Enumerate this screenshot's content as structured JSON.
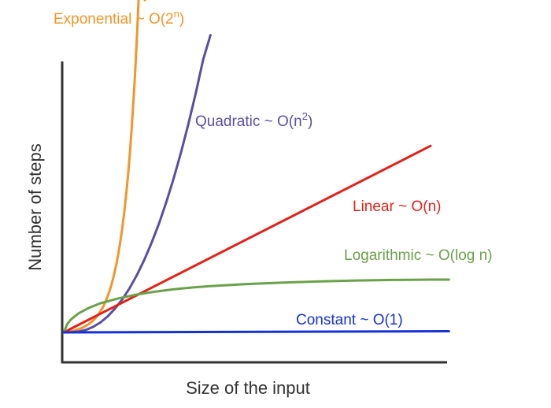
{
  "chart_data": {
    "type": "line",
    "title": "",
    "xlabel": "Size of the input",
    "ylabel": "Number of steps",
    "grid": false,
    "legend": "none",
    "axis_color": "#333333",
    "series": [
      {
        "name": "Exponential ~ O(2ⁿ)",
        "label_main": "Exponential ~ O(2",
        "label_sup": "n",
        "label_end": ")",
        "color": "#F0962A",
        "kind": "exponential",
        "x": [
          0,
          0.005,
          0.01,
          0.015,
          0.02,
          0.025,
          0.03,
          0.035,
          0.04,
          0.045,
          0.05,
          0.055,
          0.06,
          0.065,
          0.07,
          0.075,
          0.08,
          0.085,
          0.09,
          0.095,
          0.1,
          0.105,
          0.11,
          0.115,
          0.12,
          0.125,
          0.13,
          0.135,
          0.14,
          0.145,
          0.15,
          0.155,
          0.16,
          0.165,
          0.17,
          0.175,
          0.18,
          0.185,
          0.19,
          0.195,
          0.2,
          0.205,
          0.21,
          0.215,
          0.221
        ],
        "y": [
          0,
          0.0008,
          0.0017,
          0.0028,
          0.004,
          0.0054,
          0.007,
          0.0088,
          0.0108,
          0.0131,
          0.0158,
          0.0187,
          0.0221,
          0.0259,
          0.0302,
          0.0352,
          0.0408,
          0.0471,
          0.0544,
          0.0626,
          0.0721,
          0.0828,
          0.095,
          0.109,
          0.1248,
          0.1429,
          0.1636,
          0.187,
          0.2137,
          0.244,
          0.2786,
          0.3179,
          0.3625,
          0.4133,
          0.471,
          0.5366,
          0.6112,
          0.696,
          0.7923,
          0.9019,
          1.0264,
          1.1678,
          1.3288,
          1.5116,
          1.14
        ]
      },
      {
        "name": "Quadratic ~ O(n²)",
        "label_main": "Quadratic ~ O(n",
        "label_sup": "2",
        "label_end": ")",
        "color": "#5A4FA2",
        "kind": "quadratic",
        "x": [
          0,
          0.02,
          0.04,
          0.06,
          0.08,
          0.1,
          0.12,
          0.14,
          0.16,
          0.18,
          0.2,
          0.22,
          0.24,
          0.26,
          0.28,
          0.3,
          0.32,
          0.34,
          0.36,
          0.38,
          0.4
        ],
        "y": [
          0,
          0.0005,
          0.0027,
          0.0085,
          0.019,
          0.034,
          0.055,
          0.082,
          0.114,
          0.153,
          0.198,
          0.25,
          0.309,
          0.375,
          0.449,
          0.53,
          0.619,
          0.716,
          0.822,
          0.936,
          1.02
        ]
      },
      {
        "name": "Linear ~ O(n)",
        "label_main": "Linear ~ O(n)",
        "label_sup": "",
        "label_end": "",
        "color": "#E32119",
        "kind": "linear",
        "x": [
          0,
          1
        ],
        "y": [
          0,
          0.64
        ]
      },
      {
        "name": "Logarithmic ~ O(log n)",
        "label_main": "Logarithmic ~ O(log n)",
        "label_sup": "",
        "label_end": "",
        "color": "#6AA14A",
        "kind": "logarithmic",
        "x": [
          0,
          0.01,
          0.02,
          0.04,
          0.07,
          0.1,
          0.15,
          0.2,
          0.25,
          0.3,
          0.35,
          0.4,
          0.5,
          0.6,
          0.7,
          0.8,
          0.9,
          1.0,
          1.05
        ],
        "y": [
          0,
          0.03,
          0.045,
          0.065,
          0.085,
          0.1,
          0.117,
          0.13,
          0.14,
          0.148,
          0.154,
          0.159,
          0.166,
          0.171,
          0.175,
          0.178,
          0.18,
          0.181,
          0.181
        ]
      },
      {
        "name": "Constant ~ O(1)",
        "label_main": "Constant ~ O(1)",
        "label_sup": "",
        "label_end": "",
        "color": "#1531D6",
        "kind": "constant",
        "x": [
          0,
          1.05
        ],
        "y": [
          0,
          0.004
        ]
      }
    ]
  }
}
